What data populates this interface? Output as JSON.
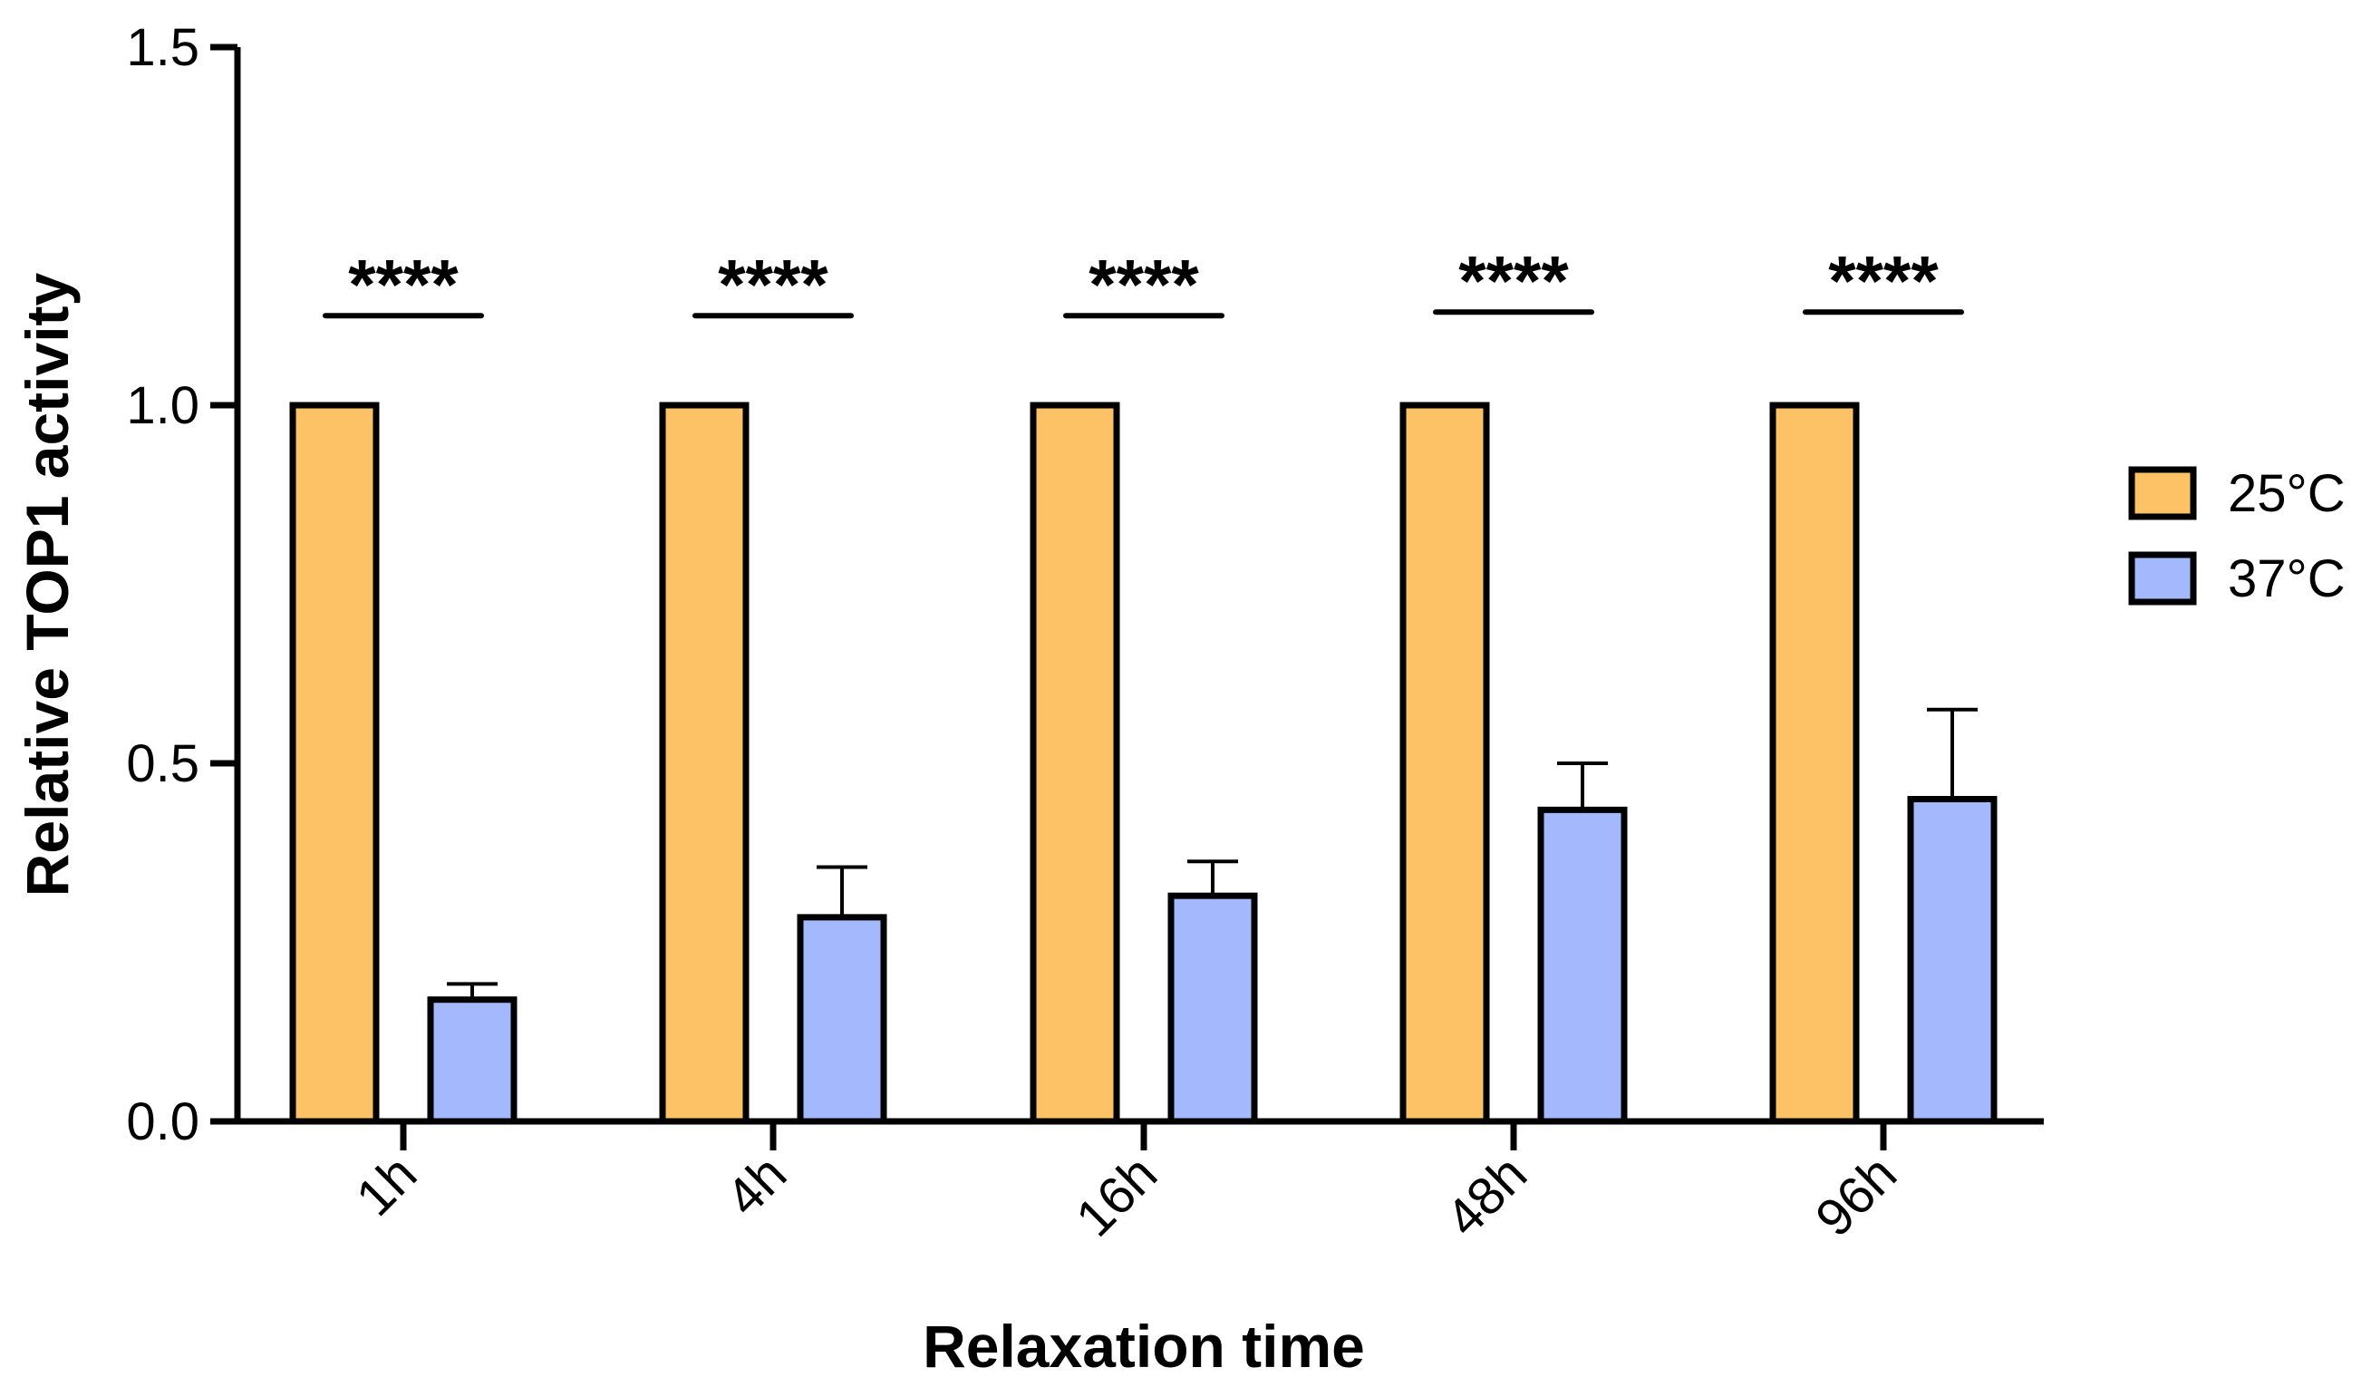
{
  "chart_data": {
    "type": "bar",
    "title": "",
    "xlabel": "Relaxation time",
    "ylabel": "Relative TOP1 activity",
    "ylim": [
      0,
      1.5
    ],
    "yticks": [
      "0.0",
      "0.5",
      "1.0",
      "1.5"
    ],
    "ytick_values": [
      0,
      0.5,
      1.0,
      1.5
    ],
    "categories": [
      "1h",
      "4h",
      "16h",
      "48h",
      "96h"
    ],
    "series": [
      {
        "name": "25°C",
        "color": "#FDC266",
        "values": [
          1.0,
          1.0,
          1.0,
          1.0,
          1.0
        ],
        "errors": [
          0,
          0,
          0,
          0,
          0
        ]
      },
      {
        "name": "37°C",
        "color": "#A3B8FD",
        "values": [
          0.17,
          0.285,
          0.315,
          0.435,
          0.45
        ],
        "errors": [
          0.022,
          0.07,
          0.048,
          0.065,
          0.125
        ]
      }
    ],
    "significance": {
      "label": "****",
      "levels": [
        1.125,
        1.125,
        1.125,
        1.13,
        1.13
      ]
    },
    "legend_position": "right",
    "grid": false
  }
}
